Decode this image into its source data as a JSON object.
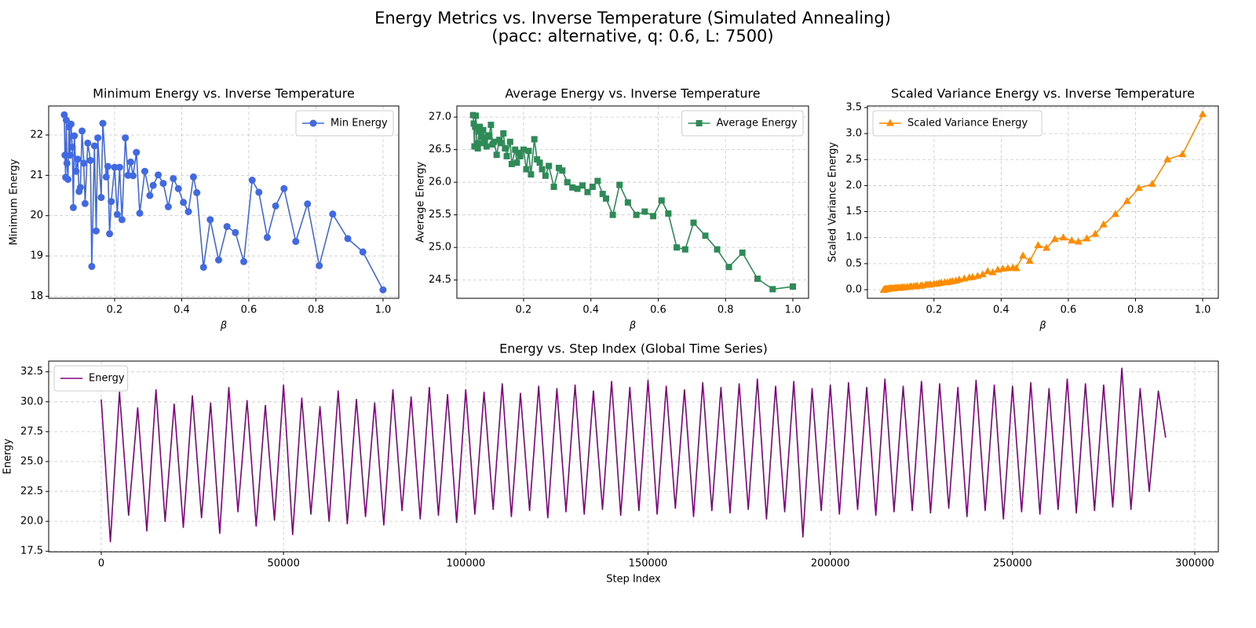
{
  "title": "Energy Metrics vs. Inverse Temperature (Simulated Annealing)",
  "subtitle": "(pacc: alternative, q: 0.6, L: 7500)",
  "chart_data": [
    {
      "type": "line",
      "title": "Minimum Energy vs. Inverse Temperature",
      "x_label": "β",
      "y_label": "Minimum Energy",
      "x": [
        0.05,
        0.052,
        0.054,
        0.056,
        0.058,
        0.061,
        0.064,
        0.067,
        0.07,
        0.074,
        0.077,
        0.08,
        0.085,
        0.09,
        0.094,
        0.098,
        0.103,
        0.108,
        0.112,
        0.12,
        0.128,
        0.132,
        0.14,
        0.145,
        0.15,
        0.16,
        0.165,
        0.175,
        0.18,
        0.185,
        0.19,
        0.2,
        0.208,
        0.215,
        0.222,
        0.232,
        0.24,
        0.248,
        0.255,
        0.265,
        0.275,
        0.29,
        0.305,
        0.315,
        0.33,
        0.345,
        0.36,
        0.375,
        0.39,
        0.405,
        0.42,
        0.435,
        0.445,
        0.465,
        0.485,
        0.51,
        0.535,
        0.56,
        0.585,
        0.61,
        0.63,
        0.655,
        0.68,
        0.705,
        0.74,
        0.775,
        0.81,
        0.85,
        0.895,
        0.94,
        1.0
      ],
      "series": [
        {
          "name": "Min Energy",
          "color": "#4169e1",
          "marker": "circle",
          "values": [
            22.5,
            21.5,
            20.95,
            22.37,
            21.3,
            20.9,
            22.2,
            21.5,
            22.27,
            21.7,
            20.2,
            21.98,
            21.1,
            21.4,
            20.6,
            20.7,
            22.1,
            21.3,
            20.3,
            21.8,
            21.37,
            18.74,
            21.73,
            19.62,
            21.93,
            20.45,
            22.29,
            20.96,
            21.22,
            19.55,
            20.35,
            21.2,
            20.03,
            21.2,
            19.9,
            21.93,
            21.0,
            21.33,
            20.99,
            21.57,
            20.06,
            21.1,
            20.5,
            20.75,
            21.01,
            20.8,
            20.22,
            20.92,
            20.67,
            20.33,
            20.1,
            20.96,
            20.57,
            18.72,
            19.9,
            18.9,
            19.73,
            19.58,
            18.86,
            20.88,
            20.58,
            19.46,
            20.24,
            20.67,
            19.36,
            20.29,
            18.76,
            20.04,
            19.43,
            19.1,
            18.16
          ]
        }
      ],
      "xlim": [
        0.0035,
        1.047
      ],
      "ylim": [
        17.95,
        22.72
      ],
      "xticks": [
        0.2,
        0.4,
        0.6,
        0.8,
        {
          "value": 1,
          "label": "1.0"
        }
      ],
      "yticks": [
        18,
        19,
        20,
        21,
        22
      ],
      "grid": true,
      "legend": "upper right"
    },
    {
      "type": "line",
      "title": "Average Energy vs. Inverse Temperature",
      "x_label": "β",
      "y_label": "Average Energy",
      "x": [
        0.05,
        0.052,
        0.054,
        0.056,
        0.058,
        0.061,
        0.064,
        0.067,
        0.07,
        0.074,
        0.077,
        0.08,
        0.085,
        0.09,
        0.094,
        0.098,
        0.103,
        0.108,
        0.112,
        0.12,
        0.128,
        0.132,
        0.14,
        0.145,
        0.15,
        0.16,
        0.165,
        0.175,
        0.18,
        0.185,
        0.19,
        0.2,
        0.208,
        0.215,
        0.222,
        0.232,
        0.24,
        0.248,
        0.255,
        0.265,
        0.275,
        0.29,
        0.305,
        0.315,
        0.33,
        0.345,
        0.36,
        0.375,
        0.39,
        0.405,
        0.42,
        0.435,
        0.445,
        0.465,
        0.485,
        0.51,
        0.535,
        0.56,
        0.585,
        0.61,
        0.63,
        0.655,
        0.68,
        0.705,
        0.74,
        0.775,
        0.81,
        0.85,
        0.895,
        0.94,
        1.0
      ],
      "series": [
        {
          "name": "Average Energy",
          "color": "#2e8b57",
          "marker": "square",
          "values": [
            27.03,
            26.9,
            26.55,
            26.85,
            27.02,
            26.6,
            26.52,
            26.78,
            26.85,
            26.7,
            26.6,
            26.8,
            26.65,
            26.55,
            26.7,
            26.72,
            26.88,
            26.58,
            26.62,
            26.42,
            26.65,
            26.6,
            26.75,
            26.52,
            26.4,
            26.62,
            26.28,
            26.5,
            26.3,
            26.45,
            26.4,
            26.5,
            26.2,
            26.48,
            26.12,
            26.66,
            26.35,
            26.3,
            26.2,
            26.1,
            26.25,
            25.93,
            26.22,
            26.18,
            26.0,
            25.92,
            25.9,
            25.95,
            25.85,
            25.93,
            26.02,
            25.82,
            25.75,
            25.5,
            25.96,
            25.69,
            25.5,
            25.55,
            25.48,
            25.72,
            25.52,
            25.0,
            24.97,
            25.38,
            25.18,
            24.97,
            24.7,
            24.92,
            24.52,
            24.36,
            24.4
          ]
        }
      ],
      "xlim": [
        0.0018,
        1.0466
      ],
      "ylim": [
        24.22,
        27.17
      ],
      "xticks": [
        0.2,
        0.4,
        0.6,
        0.8,
        {
          "value": 1,
          "label": "1.0"
        }
      ],
      "yticks": [
        24.5,
        {
          "value": 25,
          "label": "25.0"
        },
        25.5,
        {
          "value": 26,
          "label": "26.0"
        },
        26.5,
        {
          "value": 27,
          "label": "27.0"
        }
      ],
      "grid": true,
      "legend": "upper right"
    },
    {
      "type": "line",
      "title": "Scaled Variance Energy vs. Inverse Temperature",
      "x_label": "β",
      "y_label": "Scaled Variance Energy",
      "x": [
        0.05,
        0.052,
        0.054,
        0.056,
        0.058,
        0.061,
        0.064,
        0.067,
        0.07,
        0.074,
        0.077,
        0.08,
        0.085,
        0.09,
        0.094,
        0.098,
        0.103,
        0.108,
        0.112,
        0.12,
        0.128,
        0.132,
        0.14,
        0.145,
        0.15,
        0.16,
        0.165,
        0.175,
        0.18,
        0.185,
        0.19,
        0.2,
        0.208,
        0.215,
        0.222,
        0.232,
        0.24,
        0.248,
        0.255,
        0.265,
        0.275,
        0.29,
        0.305,
        0.315,
        0.33,
        0.345,
        0.36,
        0.375,
        0.39,
        0.405,
        0.42,
        0.435,
        0.445,
        0.465,
        0.485,
        0.51,
        0.535,
        0.56,
        0.585,
        0.61,
        0.63,
        0.655,
        0.68,
        0.705,
        0.74,
        0.775,
        0.81,
        0.85,
        0.895,
        0.94,
        1.0
      ],
      "series": [
        {
          "name": "Scaled Variance Energy",
          "color": "#ff8c00",
          "marker": "triangle",
          "values": [
            -0.01,
            0.0,
            0.0,
            0.01,
            0.01,
            0.01,
            0.01,
            0.02,
            0.02,
            0.02,
            0.02,
            0.02,
            0.03,
            0.03,
            0.03,
            0.03,
            0.04,
            0.04,
            0.04,
            0.05,
            0.05,
            0.06,
            0.06,
            0.06,
            0.07,
            0.07,
            0.08,
            0.09,
            0.09,
            0.09,
            0.1,
            0.11,
            0.11,
            0.12,
            0.13,
            0.14,
            0.14,
            0.15,
            0.16,
            0.17,
            0.19,
            0.21,
            0.23,
            0.24,
            0.26,
            0.29,
            0.35,
            0.33,
            0.38,
            0.4,
            0.41,
            0.42,
            0.41,
            0.65,
            0.55,
            0.85,
            0.8,
            0.97,
            1.0,
            0.94,
            0.92,
            0.98,
            1.07,
            1.25,
            1.45,
            1.7,
            1.95,
            2.03,
            2.5,
            2.6,
            3.37
          ]
        }
      ],
      "xlim": [
        0.0018,
        1.0466
      ],
      "ylim": [
        -0.166,
        3.53
      ],
      "xticks": [
        0.2,
        0.4,
        0.6,
        0.8,
        {
          "value": 1,
          "label": "1.0"
        }
      ],
      "yticks": [
        {
          "value": 0,
          "label": "0.0"
        },
        0.5,
        {
          "value": 1,
          "label": "1.0"
        },
        1.5,
        {
          "value": 2,
          "label": "2.0"
        },
        2.5,
        {
          "value": 3,
          "label": "3.0"
        },
        3.5
      ],
      "grid": true,
      "legend": "upper left"
    },
    {
      "type": "line",
      "title": "Energy vs. Step Index (Global Time Series)",
      "x_label": "Step Index",
      "y_label": "Energy",
      "x": [
        0,
        2500,
        5000,
        7500,
        10000,
        12500,
        15000,
        17500,
        20000,
        22500,
        25000,
        27500,
        30000,
        32500,
        35000,
        37500,
        40000,
        42500,
        45000,
        47500,
        50000,
        52500,
        55000,
        57500,
        60000,
        62500,
        65000,
        67500,
        70000,
        72500,
        75000,
        77500,
        80000,
        82500,
        85000,
        87500,
        90000,
        92500,
        95000,
        97500,
        100000,
        102500,
        105000,
        107500,
        110000,
        112500,
        115000,
        117500,
        120000,
        122500,
        125000,
        127500,
        130000,
        132500,
        135000,
        137500,
        140000,
        142500,
        145000,
        147500,
        150000,
        152500,
        155000,
        157500,
        160000,
        162500,
        165000,
        167500,
        170000,
        172500,
        175000,
        177500,
        180000,
        182500,
        185000,
        187500,
        190000,
        192500,
        195000,
        197500,
        200000,
        202500,
        205000,
        207500,
        210000,
        212500,
        215000,
        217500,
        220000,
        222500,
        225000,
        227500,
        230000,
        232500,
        235000,
        237500,
        240000,
        242500,
        245000,
        247500,
        250000,
        252500,
        255000,
        257500,
        260000,
        262500,
        265000,
        267500,
        270000,
        272500,
        275000,
        277500,
        280000,
        282500,
        285000,
        287500,
        290000,
        292000
      ],
      "series": [
        {
          "name": "Energy",
          "color": "#800080",
          "marker": "none",
          "values": [
            30.2,
            18.3,
            30.8,
            20.5,
            29.5,
            19.2,
            31.0,
            20.0,
            29.8,
            19.5,
            30.5,
            20.3,
            29.9,
            19.0,
            31.2,
            20.8,
            30.1,
            19.6,
            29.7,
            20.1,
            31.4,
            18.9,
            30.3,
            20.6,
            29.6,
            20.0,
            30.9,
            19.8,
            30.2,
            20.4,
            29.9,
            19.7,
            31.0,
            20.9,
            30.4,
            20.2,
            31.2,
            20.5,
            30.6,
            19.9,
            31.0,
            20.6,
            30.8,
            21.0,
            31.5,
            20.4,
            30.7,
            20.9,
            31.3,
            20.3,
            31.1,
            20.8,
            31.4,
            20.6,
            30.9,
            21.0,
            31.7,
            20.5,
            31.2,
            20.9,
            31.8,
            20.6,
            31.3,
            21.1,
            31.0,
            20.4,
            31.6,
            20.9,
            31.2,
            20.7,
            31.5,
            21.0,
            31.9,
            20.2,
            31.3,
            20.8,
            31.7,
            18.7,
            31.1,
            20.9,
            31.4,
            20.6,
            31.6,
            21.0,
            31.2,
            20.5,
            31.9,
            20.8,
            31.3,
            20.9,
            31.7,
            20.7,
            31.5,
            21.1,
            31.2,
            20.4,
            31.8,
            20.9,
            31.4,
            20.2,
            31.3,
            20.8,
            31.6,
            20.6,
            31.1,
            21.0,
            31.9,
            20.7,
            31.5,
            20.9,
            31.4,
            21.2,
            32.8,
            21.0,
            31.1,
            22.5,
            30.9,
            27.0
          ]
        }
      ],
      "xlim": [
        -14430,
        306460
      ],
      "ylim": [
        17.45,
        33.4
      ],
      "xticks": [
        0,
        50000,
        100000,
        150000,
        200000,
        250000,
        300000
      ],
      "yticks": [
        17.5,
        {
          "value": 20,
          "label": "20.0"
        },
        22.5,
        {
          "value": 25,
          "label": "25.0"
        },
        27.5,
        {
          "value": 30,
          "label": "30.0"
        },
        32.5
      ],
      "grid": true,
      "legend": "upper left"
    }
  ]
}
